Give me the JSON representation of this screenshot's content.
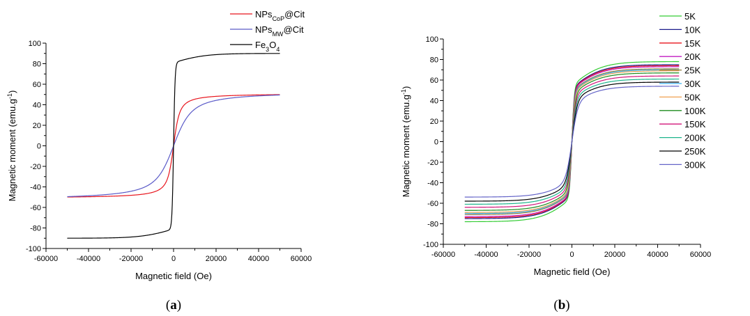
{
  "chart_data": [
    {
      "panel_label": {
        "open": "(",
        "letter": "a",
        "close": ")"
      },
      "type": "line",
      "title": "",
      "xlabel": "Magnetic field (Oe)",
      "ylabel": {
        "main": "Magnetic moment (emu.g",
        "sup": "-1",
        "close": ")"
      },
      "xlim": [
        -60000,
        60000
      ],
      "ylim": [
        -100,
        100
      ],
      "xticks": [
        -60000,
        -40000,
        -20000,
        0,
        20000,
        40000,
        60000
      ],
      "yticks": [
        -100,
        -80,
        -60,
        -40,
        -20,
        0,
        20,
        40,
        60,
        80,
        100
      ],
      "legend_position": "top-right, outside plot area",
      "x_range": [
        -50000,
        50000
      ],
      "series": [
        {
          "name": "NPsCoP@Cit",
          "legend": {
            "base": "NPs",
            "sub": "CoP",
            "rest": "@Cit",
            "subtype": "sub"
          },
          "color": "#e8141c",
          "ms": 51,
          "h0": 1100,
          "shape": "langevin",
          "points": [
            [
              -50000,
              -51
            ],
            [
              -20000,
              -49.5
            ],
            [
              -5000,
              -46
            ],
            [
              -1000,
              -30
            ],
            [
              0,
              0
            ],
            [
              1000,
              30
            ],
            [
              5000,
              46
            ],
            [
              20000,
              49.5
            ],
            [
              50000,
              51
            ]
          ]
        },
        {
          "name": "NPsMW@Cit",
          "legend": {
            "base": "NPs",
            "sub": "MW",
            "rest": "@Cit",
            "subtype": "sub"
          },
          "color": "#5a5ac8",
          "ms": 53,
          "h0": 3300,
          "shape": "langevin",
          "points": [
            [
              -50000,
              -53
            ],
            [
              -20000,
              -48
            ],
            [
              -5000,
              -31
            ],
            [
              0,
              0
            ],
            [
              5000,
              31
            ],
            [
              20000,
              48
            ],
            [
              50000,
              53
            ]
          ]
        },
        {
          "name": "Fe3O4",
          "legend": {
            "parts": [
              "Fe",
              "3",
              "O",
              "4"
            ],
            "subtype": "chem"
          },
          "color": "#000000",
          "ms": 90,
          "h0": 700,
          "shape": "tanh",
          "points": [
            [
              -50000,
              -89.5
            ],
            [
              -20000,
              -87
            ],
            [
              -5000,
              -80
            ],
            [
              -1000,
              -55
            ],
            [
              0,
              0
            ],
            [
              1000,
              55
            ],
            [
              5000,
              80
            ],
            [
              20000,
              87
            ],
            [
              50000,
              89.5
            ]
          ]
        }
      ]
    },
    {
      "panel_label": {
        "open": "(",
        "letter": "b",
        "close": ")"
      },
      "type": "line",
      "title": "",
      "xlabel": "Magnetic field (Oe)",
      "ylabel": {
        "main": "Magnetic moment (emu.g",
        "sup": "-1",
        "close": ")"
      },
      "xlim": [
        -60000,
        60000
      ],
      "ylim": [
        -100,
        100
      ],
      "xticks": [
        -60000,
        -40000,
        -20000,
        0,
        20000,
        40000,
        60000
      ],
      "yticks": [
        -100,
        -80,
        -60,
        -40,
        -20,
        0,
        20,
        40,
        60,
        80,
        100
      ],
      "legend_position": "top-right, outside plot area",
      "x_range": [
        -50000,
        50000
      ],
      "series": [
        {
          "name": "5K",
          "color": "#33cc33",
          "ms": 78,
          "h0": 1100,
          "shape": "mixed",
          "points": [
            [
              0,
              0
            ],
            [
              5000,
              62
            ],
            [
              50000,
              78
            ]
          ]
        },
        {
          "name": "10K",
          "color": "#1a1a8c",
          "ms": 75,
          "h0": 1150,
          "shape": "mixed",
          "points": [
            [
              0,
              0
            ],
            [
              5000,
              60
            ],
            [
              50000,
              75
            ]
          ]
        },
        {
          "name": "15K",
          "color": "#e8141c",
          "ms": 74,
          "h0": 1200,
          "shape": "mixed",
          "points": [
            [
              0,
              0
            ],
            [
              5000,
              59
            ],
            [
              50000,
              74
            ]
          ]
        },
        {
          "name": "20K",
          "color": "#c21ec2",
          "ms": 73,
          "h0": 1250,
          "shape": "mixed",
          "points": [
            [
              0,
              0
            ],
            [
              5000,
              58
            ],
            [
              50000,
              73
            ]
          ]
        },
        {
          "name": "25K",
          "color": "#8c7a3c",
          "ms": 71,
          "h0": 1300,
          "shape": "mixed",
          "points": [
            [
              0,
              0
            ],
            [
              5000,
              57
            ],
            [
              50000,
              71
            ]
          ]
        },
        {
          "name": "30K",
          "color": "#3cb4f0",
          "ms": 70,
          "h0": 1350,
          "shape": "mixed",
          "points": [
            [
              0,
              0
            ],
            [
              5000,
              56
            ],
            [
              50000,
              70
            ]
          ]
        },
        {
          "name": "50K",
          "color": "#f0a050",
          "ms": 69,
          "h0": 1450,
          "shape": "mixed",
          "points": [
            [
              0,
              0
            ],
            [
              5000,
              55
            ],
            [
              50000,
              69
            ]
          ]
        },
        {
          "name": "100K",
          "color": "#1e8c1e",
          "ms": 67,
          "h0": 1650,
          "shape": "mixed",
          "points": [
            [
              0,
              0
            ],
            [
              5000,
              52
            ],
            [
              50000,
              67
            ]
          ]
        },
        {
          "name": "150K",
          "color": "#d2147a",
          "ms": 64,
          "h0": 1850,
          "shape": "mixed",
          "points": [
            [
              0,
              0
            ],
            [
              5000,
              48
            ],
            [
              50000,
              64
            ]
          ]
        },
        {
          "name": "200K",
          "color": "#1eb48c",
          "ms": 61,
          "h0": 2100,
          "shape": "mixed",
          "points": [
            [
              0,
              0
            ],
            [
              5000,
              44
            ],
            [
              50000,
              61
            ]
          ]
        },
        {
          "name": "250K",
          "color": "#000000",
          "ms": 58,
          "h0": 2400,
          "shape": "mixed",
          "points": [
            [
              0,
              0
            ],
            [
              5000,
              40
            ],
            [
              50000,
              58
            ]
          ]
        },
        {
          "name": "300K",
          "color": "#6464c8",
          "ms": 54,
          "h0": 2800,
          "shape": "mixed",
          "points": [
            [
              0,
              0
            ],
            [
              5000,
              36
            ],
            [
              50000,
              54
            ]
          ]
        }
      ]
    }
  ]
}
